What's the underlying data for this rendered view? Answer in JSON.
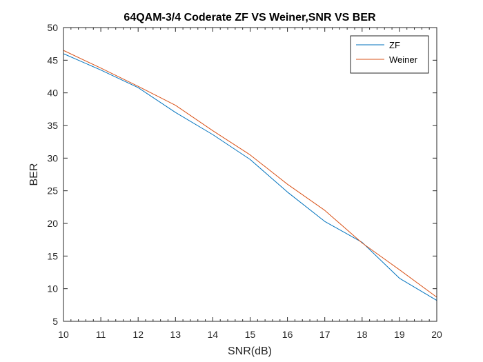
{
  "chart_data": {
    "type": "line",
    "title": "64QAM-3/4 Coderate ZF VS Weiner,SNR VS BER",
    "xlabel": "SNR(dB)",
    "ylabel": "BER",
    "xlim": [
      10,
      20
    ],
    "ylim": [
      5,
      50
    ],
    "xticks": [
      10,
      11,
      12,
      13,
      14,
      15,
      16,
      17,
      18,
      19,
      20
    ],
    "yticks": [
      5,
      10,
      15,
      20,
      25,
      30,
      35,
      40,
      45,
      50
    ],
    "x": [
      10,
      11,
      12,
      13,
      14,
      15,
      16,
      17,
      18,
      19,
      20
    ],
    "series": [
      {
        "name": "ZF",
        "color": "#0072BD",
        "values": [
          46.0,
          43.5,
          40.8,
          37.0,
          33.6,
          29.8,
          24.8,
          20.3,
          17.1,
          11.6,
          8.2
        ]
      },
      {
        "name": "Weiner",
        "color": "#D95319",
        "values": [
          46.5,
          43.8,
          41.0,
          38.1,
          34.2,
          30.5,
          26.0,
          22.0,
          17.0,
          12.9,
          8.7
        ]
      }
    ],
    "grid": false,
    "legend_position": "top-right"
  }
}
